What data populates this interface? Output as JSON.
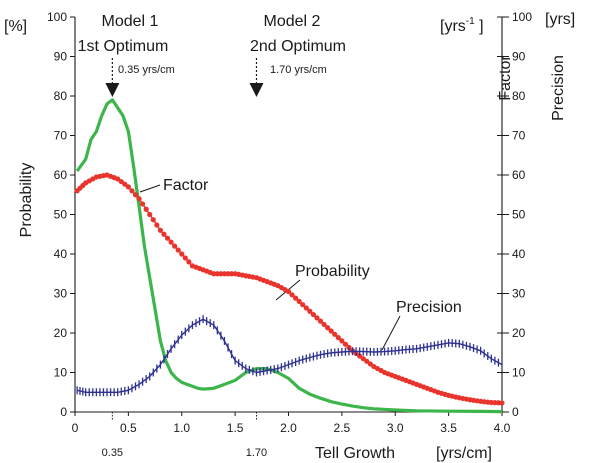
{
  "chart_data": {
    "type": "line",
    "title": "",
    "x_axis": {
      "label": "Tell Growth",
      "unit": "[yrs/cm]",
      "min": 0,
      "max": 4,
      "ticks": [
        "0",
        "0.5",
        "1.0",
        "1.5",
        "2.0",
        "2.5",
        "3.0",
        "3.5",
        "4.0"
      ],
      "tick_values": [
        0,
        0.5,
        1.0,
        1.5,
        2.0,
        2.5,
        3.0,
        3.5,
        4.0
      ],
      "extra_ticks": [
        {
          "value": 0.35,
          "label": "0.35"
        },
        {
          "value": 1.7,
          "label": "1.70"
        }
      ]
    },
    "y_left": {
      "label": "Probability",
      "unit": "[%]",
      "min": 0,
      "max": 100,
      "ticks": [
        "0",
        "10",
        "20",
        "30",
        "40",
        "50",
        "60",
        "70",
        "80",
        "90",
        "100"
      ],
      "tick_values": [
        0,
        10,
        20,
        30,
        40,
        50,
        60,
        70,
        80,
        90,
        100
      ]
    },
    "y_right_factor": {
      "label": "Factor",
      "unit_prefix": "[yrs",
      "unit_exp": "-1",
      "unit_suffix": " ]",
      "min": 0,
      "max": 100,
      "ticks": [
        "0",
        "10",
        "20",
        "30",
        "40",
        "50",
        "60",
        "70",
        "80",
        "90",
        "100"
      ],
      "tick_values": [
        0,
        10,
        20,
        30,
        40,
        50,
        60,
        70,
        80,
        90,
        100
      ]
    },
    "y_right_precision": {
      "label": "Precision",
      "unit": "[yrs]"
    },
    "annotations": {
      "model1": {
        "line1": "Model 1",
        "line2": "1st Optimum",
        "value_text": "0.35 yrs/cm",
        "x": 0.35
      },
      "model2": {
        "line1": "Model 2",
        "line2": "2nd Optimum",
        "value_text": "1.70 yrs/cm",
        "x": 1.7
      }
    },
    "series": [
      {
        "name": "Factor",
        "color": "#3cb54a",
        "marker": "none",
        "points": [
          [
            0.02,
            61
          ],
          [
            0.1,
            64
          ],
          [
            0.15,
            69
          ],
          [
            0.2,
            71
          ],
          [
            0.25,
            75
          ],
          [
            0.3,
            78
          ],
          [
            0.35,
            79
          ],
          [
            0.4,
            77
          ],
          [
            0.45,
            75
          ],
          [
            0.5,
            71
          ],
          [
            0.55,
            62
          ],
          [
            0.6,
            52
          ],
          [
            0.65,
            42
          ],
          [
            0.7,
            34
          ],
          [
            0.75,
            26
          ],
          [
            0.8,
            18
          ],
          [
            0.85,
            13
          ],
          [
            0.9,
            10
          ],
          [
            0.95,
            8.5
          ],
          [
            1.0,
            7.5
          ],
          [
            1.05,
            7
          ],
          [
            1.1,
            6.5
          ],
          [
            1.15,
            6
          ],
          [
            1.2,
            5.8
          ],
          [
            1.3,
            6
          ],
          [
            1.4,
            7
          ],
          [
            1.5,
            8
          ],
          [
            1.6,
            10
          ],
          [
            1.7,
            11
          ],
          [
            1.8,
            11
          ],
          [
            1.9,
            10
          ],
          [
            2.0,
            8.5
          ],
          [
            2.1,
            6
          ],
          [
            2.2,
            4.5
          ],
          [
            2.3,
            3.5
          ],
          [
            2.4,
            2.6
          ],
          [
            2.5,
            2
          ],
          [
            2.6,
            1.5
          ],
          [
            2.7,
            1.1
          ],
          [
            2.8,
            0.8
          ],
          [
            3.0,
            0.5
          ],
          [
            3.2,
            0.3
          ],
          [
            3.5,
            0.2
          ],
          [
            3.8,
            0.15
          ],
          [
            4.0,
            0.1
          ]
        ]
      },
      {
        "name": "Probability",
        "color": "#e8342c",
        "marker": "circle",
        "points": [
          [
            0.02,
            56
          ],
          [
            0.1,
            58
          ],
          [
            0.2,
            59.5
          ],
          [
            0.3,
            60
          ],
          [
            0.4,
            59
          ],
          [
            0.5,
            57
          ],
          [
            0.6,
            54
          ],
          [
            0.7,
            50
          ],
          [
            0.8,
            46
          ],
          [
            0.9,
            43
          ],
          [
            1.0,
            40
          ],
          [
            1.1,
            37
          ],
          [
            1.2,
            36
          ],
          [
            1.3,
            35
          ],
          [
            1.4,
            35
          ],
          [
            1.5,
            35
          ],
          [
            1.6,
            34.5
          ],
          [
            1.7,
            34
          ],
          [
            1.8,
            33
          ],
          [
            1.9,
            32
          ],
          [
            2.0,
            30.5
          ],
          [
            2.1,
            28
          ],
          [
            2.2,
            25.5
          ],
          [
            2.3,
            23
          ],
          [
            2.4,
            20.5
          ],
          [
            2.5,
            18
          ],
          [
            2.6,
            15.5
          ],
          [
            2.7,
            13.5
          ],
          [
            2.8,
            11.5
          ],
          [
            2.9,
            10
          ],
          [
            3.0,
            9
          ],
          [
            3.1,
            8
          ],
          [
            3.2,
            7
          ],
          [
            3.3,
            6
          ],
          [
            3.4,
            5
          ],
          [
            3.5,
            4.2
          ],
          [
            3.6,
            3.6
          ],
          [
            3.7,
            3.1
          ],
          [
            3.8,
            2.7
          ],
          [
            3.9,
            2.4
          ],
          [
            4.0,
            2.3
          ]
        ]
      },
      {
        "name": "Precision",
        "color": "#2e3192",
        "marker": "plus",
        "points": [
          [
            0.02,
            5.5
          ],
          [
            0.1,
            5
          ],
          [
            0.2,
            5
          ],
          [
            0.3,
            5
          ],
          [
            0.4,
            5
          ],
          [
            0.5,
            5.5
          ],
          [
            0.6,
            7
          ],
          [
            0.7,
            9
          ],
          [
            0.8,
            12
          ],
          [
            0.9,
            16
          ],
          [
            1.0,
            19.5
          ],
          [
            1.1,
            22
          ],
          [
            1.2,
            23.5
          ],
          [
            1.3,
            22
          ],
          [
            1.4,
            18
          ],
          [
            1.5,
            13
          ],
          [
            1.6,
            11
          ],
          [
            1.7,
            10
          ],
          [
            1.8,
            10.5
          ],
          [
            1.9,
            11
          ],
          [
            2.0,
            12
          ],
          [
            2.1,
            13
          ],
          [
            2.2,
            13.8
          ],
          [
            2.3,
            14.5
          ],
          [
            2.4,
            15
          ],
          [
            2.5,
            15.2
          ],
          [
            2.6,
            15.4
          ],
          [
            2.7,
            15.3
          ],
          [
            2.8,
            15.2
          ],
          [
            2.9,
            15.3
          ],
          [
            3.0,
            15.5
          ],
          [
            3.1,
            15.8
          ],
          [
            3.2,
            16
          ],
          [
            3.3,
            16.5
          ],
          [
            3.4,
            17
          ],
          [
            3.5,
            17.5
          ],
          [
            3.6,
            17.3
          ],
          [
            3.7,
            16.5
          ],
          [
            3.8,
            15.5
          ],
          [
            3.9,
            13.5
          ],
          [
            4.0,
            12
          ]
        ]
      }
    ]
  }
}
